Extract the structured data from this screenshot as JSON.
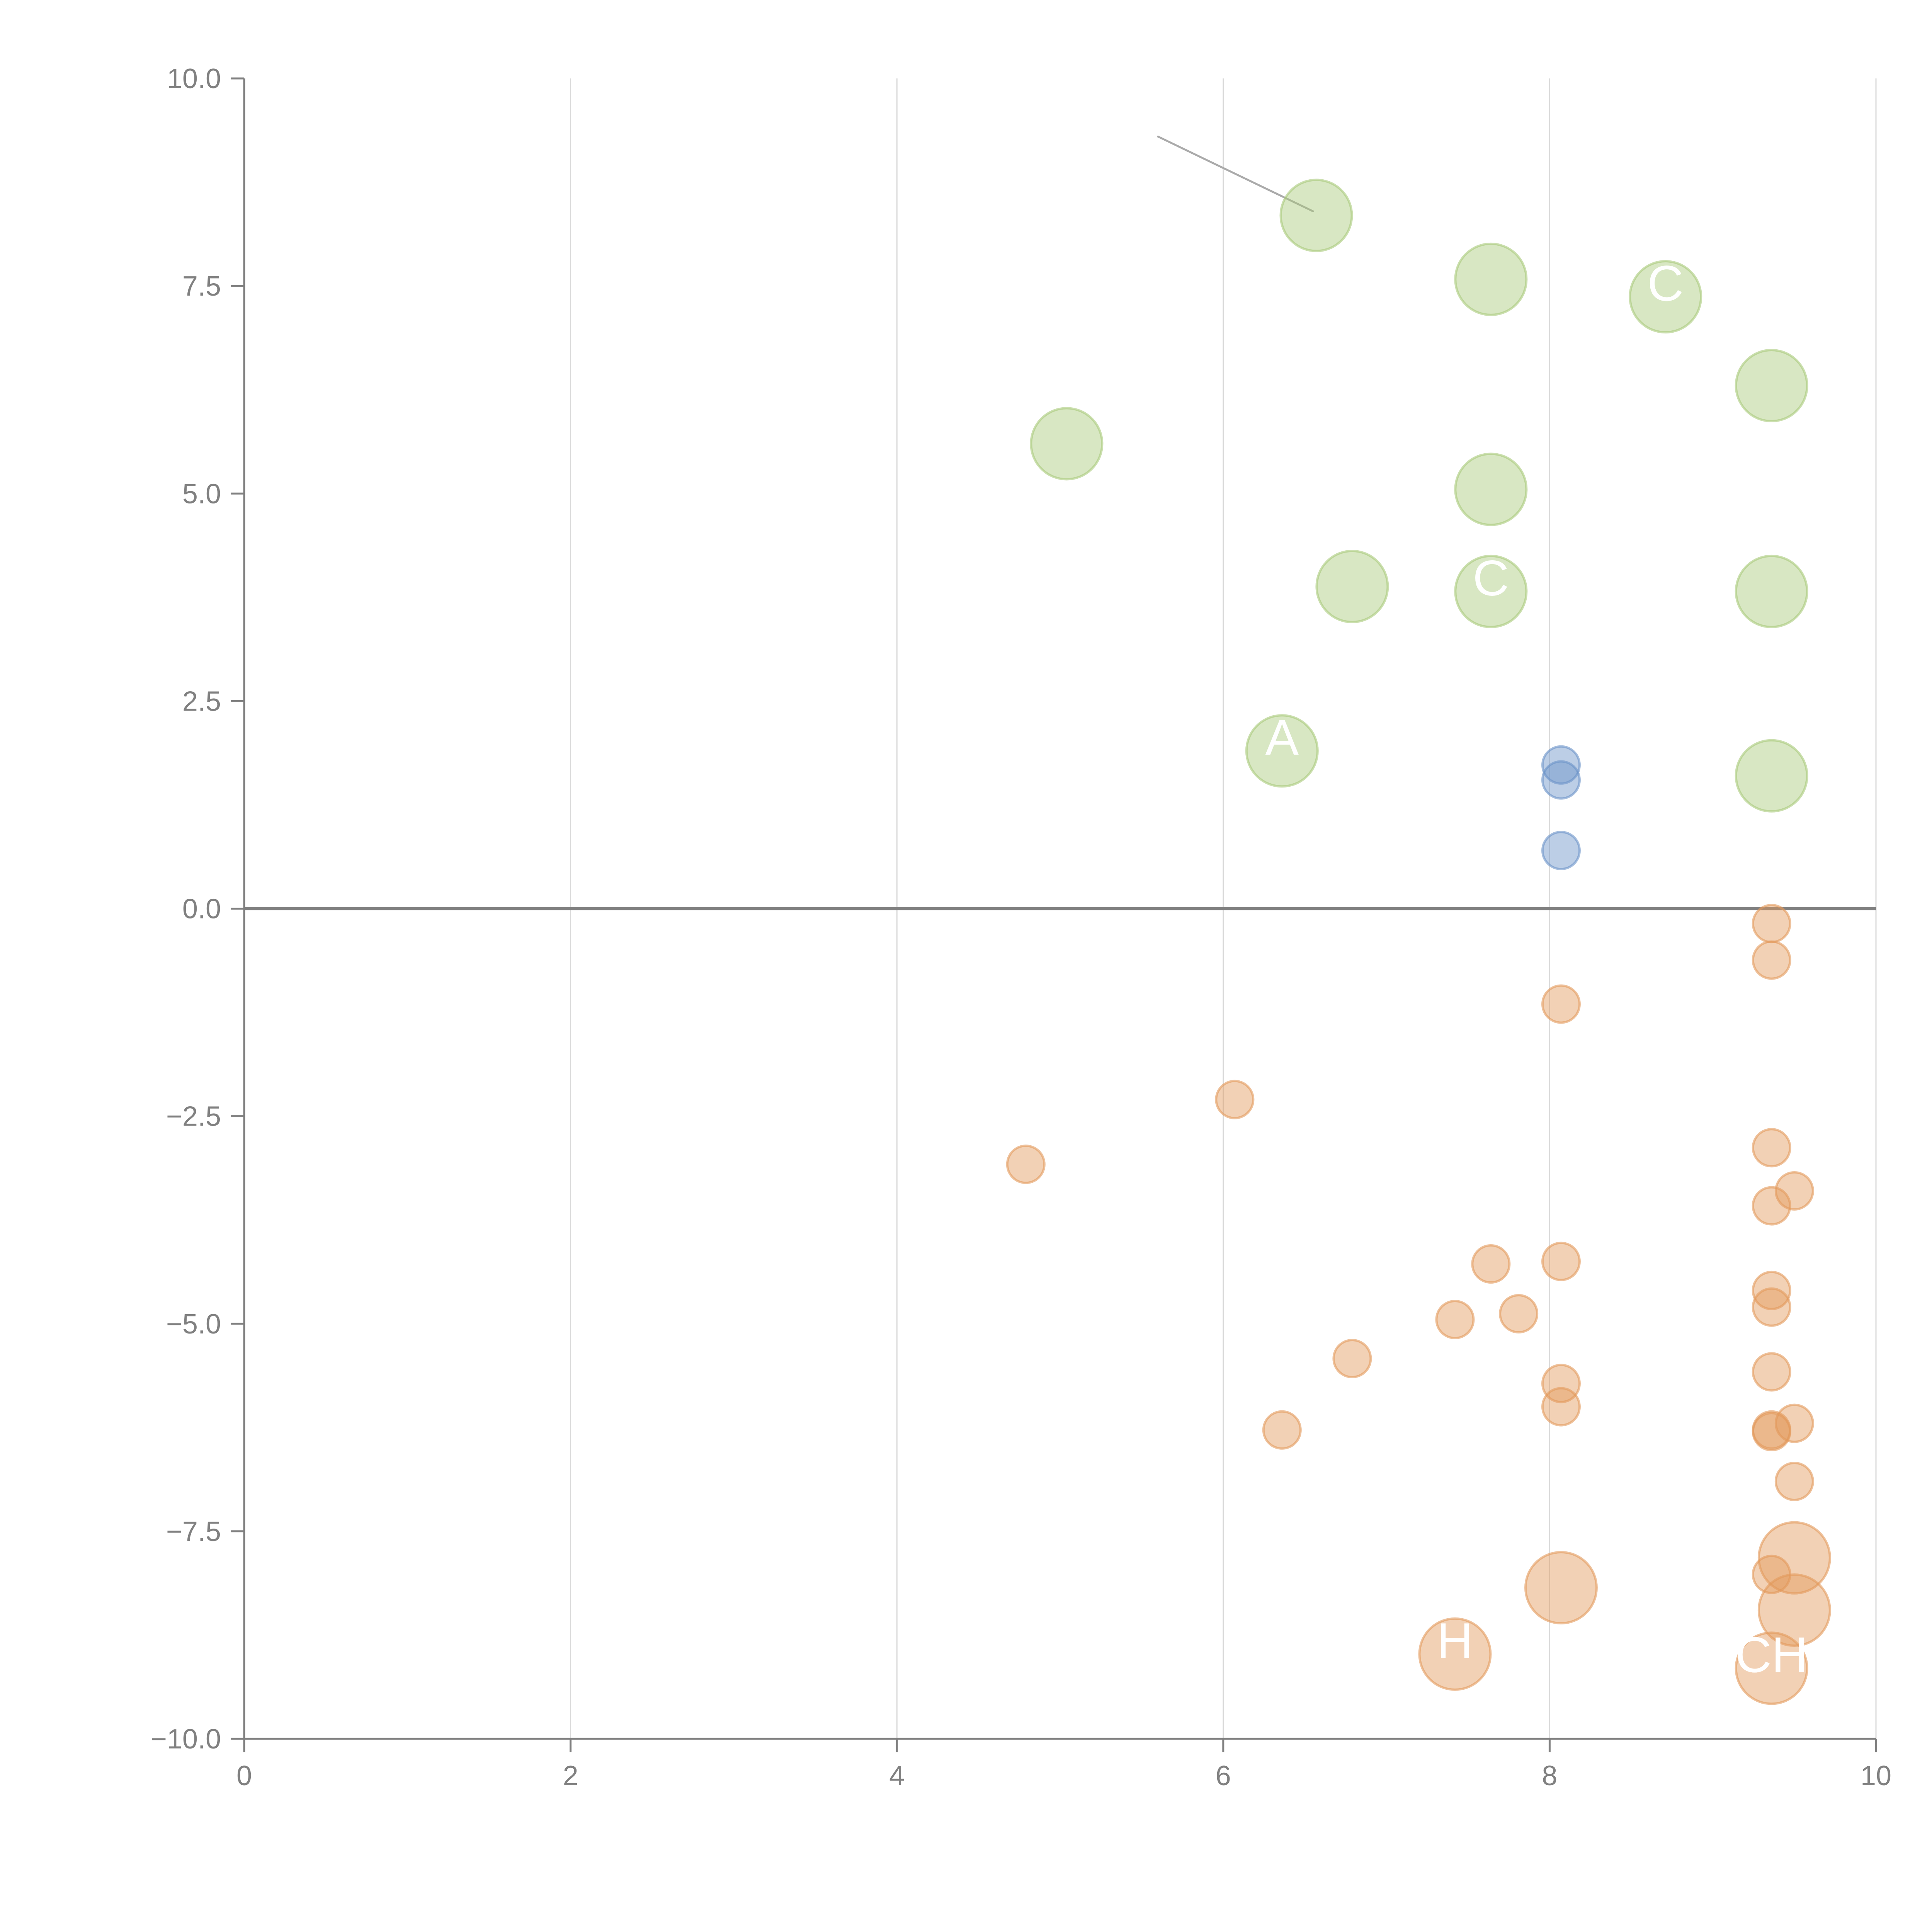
{
  "chart_data": {
    "type": "scatter",
    "variant": "bubble",
    "title": "",
    "xlabel": "",
    "ylabel": "",
    "xlim": [
      0,
      10
    ],
    "ylim": [
      -10,
      10
    ],
    "x_ticks": [
      "0",
      "2",
      "4",
      "6",
      "8",
      "10"
    ],
    "y_ticks": [
      "10.0",
      "7.5",
      "5.0",
      "2.5",
      "0.0",
      "−2.5",
      "−5.0",
      "−7.5",
      "−10.0"
    ],
    "x_tick_values": [
      0,
      2,
      4,
      6,
      8,
      10
    ],
    "y_tick_values": [
      10,
      7.5,
      5,
      2.5,
      0,
      -2.5,
      -5,
      -7.5,
      -10
    ],
    "grid": "vertical",
    "zero_line": true,
    "legend": "none",
    "series": [
      {
        "name": "green",
        "color": "#a9c97a",
        "size": 3,
        "points": [
          {
            "x": 6.57,
            "y": 8.35
          },
          {
            "x": 7.64,
            "y": 7.58
          },
          {
            "x": 8.71,
            "y": 7.37
          },
          {
            "x": 9.36,
            "y": 6.3
          },
          {
            "x": 5.04,
            "y": 5.6
          },
          {
            "x": 7.64,
            "y": 5.05
          },
          {
            "x": 6.79,
            "y": 3.88
          },
          {
            "x": 7.64,
            "y": 3.82
          },
          {
            "x": 9.36,
            "y": 3.82
          },
          {
            "x": 6.36,
            "y": 1.9
          },
          {
            "x": 9.36,
            "y": 1.6
          }
        ]
      },
      {
        "name": "blue",
        "color": "#6b93c8",
        "size": 1,
        "points": [
          {
            "x": 8.07,
            "y": 1.73
          },
          {
            "x": 8.07,
            "y": 1.55
          },
          {
            "x": 8.07,
            "y": 0.7
          }
        ]
      },
      {
        "name": "orange",
        "color": "#e39a5c",
        "size": 1,
        "points": [
          {
            "x": 9.36,
            "y": -0.18
          },
          {
            "x": 9.36,
            "y": -0.62
          },
          {
            "x": 8.07,
            "y": -1.15
          },
          {
            "x": 6.07,
            "y": -2.3
          },
          {
            "x": 4.79,
            "y": -3.08
          },
          {
            "x": 9.36,
            "y": -2.88
          },
          {
            "x": 9.5,
            "y": -3.4
          },
          {
            "x": 9.36,
            "y": -3.58
          },
          {
            "x": 7.64,
            "y": -4.28
          },
          {
            "x": 8.07,
            "y": -4.25
          },
          {
            "x": 9.36,
            "y": -4.6
          },
          {
            "x": 9.36,
            "y": -4.8
          },
          {
            "x": 7.42,
            "y": -4.95
          },
          {
            "x": 7.81,
            "y": -4.88
          },
          {
            "x": 6.79,
            "y": -5.42
          },
          {
            "x": 9.36,
            "y": -5.58
          },
          {
            "x": 8.07,
            "y": -5.72
          },
          {
            "x": 8.07,
            "y": -6.0
          },
          {
            "x": 9.5,
            "y": -6.2
          },
          {
            "x": 9.36,
            "y": -6.28
          },
          {
            "x": 9.36,
            "y": -6.3
          },
          {
            "x": 6.36,
            "y": -6.28
          },
          {
            "x": 9.5,
            "y": -6.9
          },
          {
            "x": 9.36,
            "y": -8.02
          }
        ]
      },
      {
        "name": "orange-large",
        "color": "#e39a5c",
        "size": 3,
        "points": [
          {
            "x": 9.5,
            "y": -7.82
          },
          {
            "x": 9.5,
            "y": -8.45
          },
          {
            "x": 8.07,
            "y": -8.18
          },
          {
            "x": 7.42,
            "y": -8.98
          },
          {
            "x": 9.36,
            "y": -9.15
          }
        ]
      }
    ],
    "annotations": [
      {
        "text": "A",
        "x": 6.36,
        "y": 1.9,
        "color": "#ffffff"
      },
      {
        "text": "C",
        "x": 7.64,
        "y": 3.82,
        "color": "#ffffff"
      },
      {
        "text": "CH",
        "x": 9.36,
        "y": -9.15,
        "color": "#ffffff"
      },
      {
        "text": "H",
        "x": 7.42,
        "y": -8.98,
        "color": "#ffffff"
      },
      {
        "text": "C",
        "x": 8.71,
        "y": 7.37,
        "color": "#ffffff"
      }
    ],
    "leader_lines": [
      {
        "from": {
          "x": 5.6,
          "y": 9.3
        },
        "to": {
          "x": 6.55,
          "y": 8.4
        },
        "color": "#aaaaaa"
      }
    ]
  }
}
